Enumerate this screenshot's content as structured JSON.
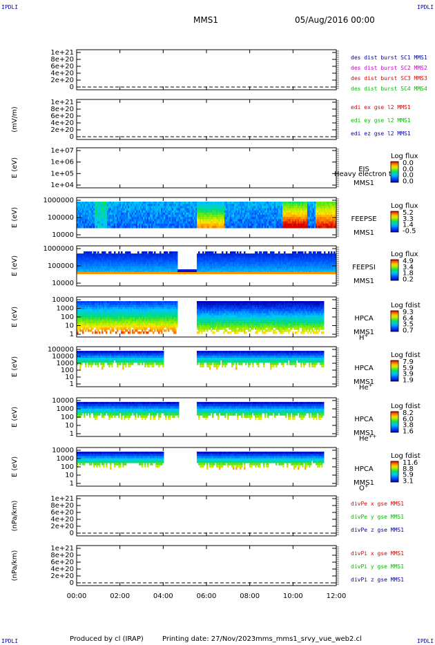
{
  "corner_label": "IPDLI",
  "header": {
    "spacecraft": "MMS1",
    "date_time": "05/Aug/2016 00:00"
  },
  "footer": {
    "producer": "Produced by cl (IRAP)",
    "printing": "Printing date: 27/Nov/2023",
    "file": "mms_mms1_srvy_vue_web2.cl"
  },
  "colors": {
    "red": "#dd0000",
    "magenta": "#cc00cc",
    "green": "#00bb00",
    "blue": "#0000aa",
    "black": "#000000"
  },
  "chart_data": [
    {
      "id": "des-dist",
      "type": "line",
      "ylabel": "",
      "ylim": [
        0,
        1e+21
      ],
      "yticks": [
        "1e+21",
        "8e+20",
        "6e+20",
        "4e+20",
        "2e+20",
        "0"
      ],
      "legend": [
        {
          "label": "des dist burst SC1 MMS1",
          "color": "#0000aa"
        },
        {
          "label": "des dist burst SC2 MMS2",
          "color": "#cc00cc"
        },
        {
          "label": "des dist burst SC3 MMS3",
          "color": "#dd0000"
        },
        {
          "label": "des dist burst SC4 MMS4",
          "color": "#00bb00"
        }
      ],
      "zero_line": true
    },
    {
      "id": "edi",
      "type": "line",
      "ylabel": "(mV/m)",
      "ylim": [
        0,
        1e+21
      ],
      "yticks": [
        "1e+21",
        "8e+20",
        "6e+20",
        "4e+20",
        "2e+20",
        "0"
      ],
      "legend": [
        {
          "label": "edi ex gse l2 MMS1",
          "color": "#dd0000"
        },
        {
          "label": "edi ey gse l2 MMS1",
          "color": "#00bb00"
        },
        {
          "label": "edi ez gse l2 MMS1",
          "color": "#0000aa"
        }
      ],
      "zero_line": true
    },
    {
      "id": "eis",
      "type": "heatmap",
      "ylabel": "E (eV)",
      "yticks": [
        "1e+07",
        "1e+06",
        "1e+05",
        "1e+04"
      ],
      "instrument": [
        "EIS",
        "MMS1"
      ],
      "overlay_text": "Heavy electron to",
      "colorbar": {
        "title": "Log flux",
        "labels": [
          "0.0",
          "0.0",
          "0.0",
          "0.0"
        ]
      },
      "fill": "none"
    },
    {
      "id": "feepse",
      "type": "heatmap",
      "ylabel": "E (eV)",
      "yticks": [
        "1000000",
        "100000",
        "10000"
      ],
      "instrument": [
        "FEEPSE",
        "MMS1"
      ],
      "colorbar": {
        "title": "Log flux",
        "labels": [
          "5.2",
          "3.3",
          "1.4",
          "-0.5"
        ]
      },
      "fill": "feepse"
    },
    {
      "id": "feepsi",
      "type": "heatmap",
      "ylabel": "E (eV)",
      "yticks": [
        "1000000",
        "100000",
        "10000"
      ],
      "instrument": [
        "FEEPSI",
        "MMS1"
      ],
      "colorbar": {
        "title": "Log flux",
        "labels": [
          "4.9",
          "3.4",
          "1.8",
          "0.2"
        ]
      },
      "fill": "feepsi"
    },
    {
      "id": "hpca-h",
      "type": "heatmap",
      "ylabel": "E (eV)",
      "yticks": [
        "10000",
        "1000",
        "100",
        "10",
        "1"
      ],
      "instrument": [
        "HPCA",
        "MMS1"
      ],
      "species": "H",
      "charge": "+",
      "colorbar": {
        "title": "Log fdist",
        "labels": [
          "9.3",
          "6.4",
          "3.5",
          "0.7"
        ]
      },
      "fill": "hpca-h"
    },
    {
      "id": "hpca-he",
      "type": "heatmap",
      "ylabel": "E (eV)",
      "yticks": [
        "100000",
        "10000",
        "1000",
        "100",
        "10",
        "1"
      ],
      "instrument": [
        "HPCA",
        "MMS1"
      ],
      "species": "He",
      "charge": "+",
      "colorbar": {
        "title": "Log fdist",
        "labels": [
          "7.9",
          "5.9",
          "3.9",
          "1.9"
        ]
      },
      "fill": "hpca-he"
    },
    {
      "id": "hpca-he2",
      "type": "heatmap",
      "ylabel": "E (eV)",
      "yticks": [
        "10000",
        "1000",
        "100",
        "10",
        "1"
      ],
      "instrument": [
        "HPCA",
        "MMS1"
      ],
      "species": "He",
      "charge": "++",
      "colorbar": {
        "title": "Log fdist",
        "labels": [
          "8.2",
          "6.0",
          "3.8",
          "1.6"
        ]
      },
      "fill": "hpca-he2"
    },
    {
      "id": "hpca-o",
      "type": "heatmap",
      "ylabel": "E (eV)",
      "yticks": [
        "10000",
        "1000",
        "100",
        "10",
        "1"
      ],
      "instrument": [
        "HPCA",
        "MMS1"
      ],
      "species": "O",
      "charge": "+",
      "colorbar": {
        "title": "Log fdist",
        "labels": [
          "11.6",
          "8.8",
          "5.9",
          "3.1"
        ]
      },
      "fill": "hpca-o"
    },
    {
      "id": "divpe",
      "type": "line",
      "ylabel": "(nPa/km)",
      "ylim": [
        0,
        1e+21
      ],
      "yticks": [
        "1e+21",
        "8e+20",
        "6e+20",
        "4e+20",
        "2e+20",
        "0"
      ],
      "legend": [
        {
          "label": "divPe x gse MMS1",
          "color": "#dd0000"
        },
        {
          "label": "divPe y gse MMS1",
          "color": "#00bb00"
        },
        {
          "label": "divPe z gse MMS1",
          "color": "#0000aa"
        }
      ],
      "zero_line": true
    },
    {
      "id": "divpi",
      "type": "line",
      "ylabel": "(nPa/km)",
      "ylim": [
        0,
        1e+21
      ],
      "yticks": [
        "1e+21",
        "8e+20",
        "6e+20",
        "4e+20",
        "2e+20",
        "0"
      ],
      "legend": [
        {
          "label": "divPi x gse MMS1",
          "color": "#dd0000"
        },
        {
          "label": "divPi y gse MMS1",
          "color": "#00bb00"
        },
        {
          "label": "divPi z gse MMS1",
          "color": "#0000aa"
        }
      ],
      "zero_line": true
    }
  ],
  "time_axis": {
    "range_hours": [
      0,
      12
    ],
    "ticks": [
      {
        "hour": 0,
        "label": "00:00"
      },
      {
        "hour": 2,
        "label": "02:00"
      },
      {
        "hour": 4,
        "label": "04:00"
      },
      {
        "hour": 6,
        "label": "06:00"
      },
      {
        "hour": 8,
        "label": "08:00"
      },
      {
        "hour": 10,
        "label": "10:00"
      },
      {
        "hour": 12,
        "label": "12:00"
      }
    ]
  }
}
